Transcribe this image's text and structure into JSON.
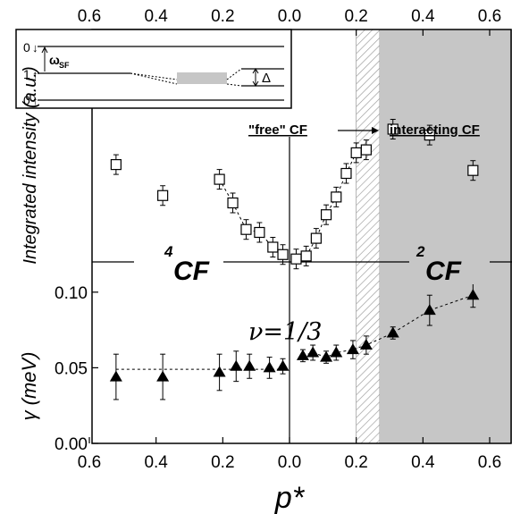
{
  "chart_data": [
    {
      "type": "scatter",
      "panel": "upper",
      "ylabel": "Integrated intensity (a.u.)",
      "x_top_ticks": [
        "0.6",
        "0.4",
        "0.2",
        "0.0",
        "0.2",
        "0.4",
        "0.6"
      ],
      "series": [
        {
          "marker": "open-square",
          "points": [
            {
              "x": -0.52,
              "y": 0.66
            },
            {
              "x": -0.38,
              "y": 0.45
            },
            {
              "x": -0.21,
              "y": 0.56
            },
            {
              "x": -0.17,
              "y": 0.4
            },
            {
              "x": -0.13,
              "y": 0.22
            },
            {
              "x": -0.09,
              "y": 0.2
            },
            {
              "x": -0.05,
              "y": 0.1
            },
            {
              "x": -0.02,
              "y": 0.05
            },
            {
              "x": 0.02,
              "y": 0.02
            },
            {
              "x": 0.05,
              "y": 0.04
            },
            {
              "x": 0.08,
              "y": 0.16
            },
            {
              "x": 0.11,
              "y": 0.32
            },
            {
              "x": 0.14,
              "y": 0.44
            },
            {
              "x": 0.17,
              "y": 0.6
            },
            {
              "x": 0.2,
              "y": 0.74
            },
            {
              "x": 0.23,
              "y": 0.76
            },
            {
              "x": 0.31,
              "y": 0.9
            },
            {
              "x": 0.42,
              "y": 0.86
            },
            {
              "x": 0.55,
              "y": 0.62
            }
          ]
        }
      ],
      "annotations": {
        "free_cf": "\"free\" CF",
        "interacting_cf": "interacting CF",
        "cf4_sup": "4",
        "cf4_base": "CF",
        "cf2_sup": "2",
        "cf2_base": "CF"
      },
      "inset": {
        "level_top": "0",
        "level_mid": "1",
        "level_bottom": "0",
        "omega_base": "ω",
        "omega_sub": "SF",
        "delta": "Δ"
      }
    },
    {
      "type": "scatter",
      "panel": "lower",
      "xlabel": "p*",
      "ylabel": "γ (meV)",
      "x_ticks": [
        "0.6",
        "0.4",
        "0.2",
        "0.0",
        "0.2",
        "0.4",
        "0.6"
      ],
      "y_ticks": [
        "0.00",
        "0.05",
        "0.10"
      ],
      "ylim": [
        0.0,
        0.12
      ],
      "series": [
        {
          "marker": "filled-triangle",
          "points": [
            {
              "x": -0.52,
              "y": 0.044,
              "err": 0.015
            },
            {
              "x": -0.38,
              "y": 0.044,
              "err": 0.015
            },
            {
              "x": -0.21,
              "y": 0.047,
              "err": 0.012
            },
            {
              "x": -0.16,
              "y": 0.051,
              "err": 0.01
            },
            {
              "x": -0.12,
              "y": 0.051,
              "err": 0.008
            },
            {
              "x": -0.06,
              "y": 0.05,
              "err": 0.007
            },
            {
              "x": -0.02,
              "y": 0.051,
              "err": 0.005
            },
            {
              "x": 0.04,
              "y": 0.058,
              "err": 0.004
            },
            {
              "x": 0.07,
              "y": 0.06,
              "err": 0.005
            },
            {
              "x": 0.11,
              "y": 0.057,
              "err": 0.004
            },
            {
              "x": 0.14,
              "y": 0.06,
              "err": 0.005
            },
            {
              "x": 0.19,
              "y": 0.062,
              "err": 0.006
            },
            {
              "x": 0.23,
              "y": 0.065,
              "err": 0.006
            },
            {
              "x": 0.31,
              "y": 0.073,
              "err": 0.004
            },
            {
              "x": 0.42,
              "y": 0.088,
              "err": 0.01
            },
            {
              "x": 0.55,
              "y": 0.098,
              "err": 0.008
            }
          ]
        }
      ],
      "annotations": {
        "nu_label": "ν=1/3"
      }
    }
  ]
}
